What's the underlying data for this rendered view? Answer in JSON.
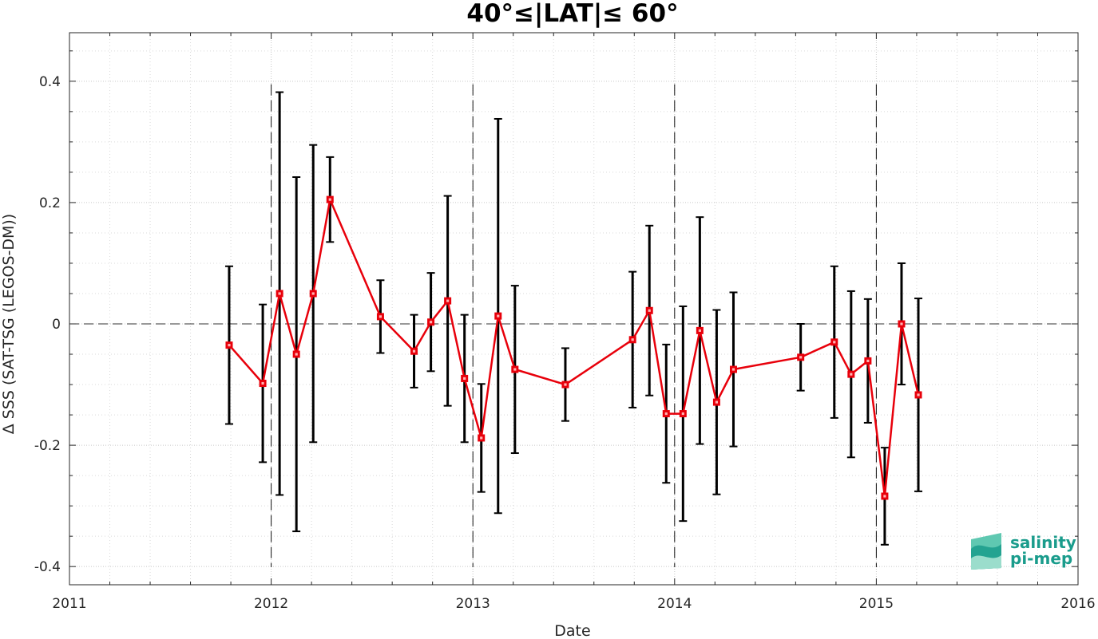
{
  "chart_data": {
    "type": "line",
    "title": "40°≤|LAT|≤ 60°",
    "xlabel": "Date",
    "ylabel": "Δ SSS (SAT-TSG (LEGOS-DM))",
    "xlim": [
      2011,
      2016
    ],
    "ylim": [
      -0.43,
      0.48
    ],
    "x_ticks": [
      "2011",
      "2012",
      "2013",
      "2014",
      "2015",
      "2016"
    ],
    "y_ticks": [
      "-0.4",
      "-0.2",
      "0",
      "0.2",
      "0.4"
    ],
    "grid": true,
    "reference_line_y": 0,
    "year_boundaries": [
      2012,
      2013,
      2014,
      2015
    ],
    "series": [
      {
        "color": "#e8000b",
        "errorbar_color": "#000000",
        "points": [
          {
            "x": "2011-10",
            "y": -0.035,
            "low": -0.165,
            "high": 0.095
          },
          {
            "x": "2011-12",
            "y": -0.098,
            "low": -0.228,
            "high": 0.032
          },
          {
            "x": "2012-01",
            "y": 0.05,
            "low": -0.282,
            "high": 0.382
          },
          {
            "x": "2012-02",
            "y": -0.05,
            "low": -0.342,
            "high": 0.242
          },
          {
            "x": "2012-03",
            "y": 0.05,
            "low": -0.195,
            "high": 0.295
          },
          {
            "x": "2012-04",
            "y": 0.205,
            "low": 0.135,
            "high": 0.275
          },
          {
            "x": "2012-07",
            "y": 0.012,
            "low": -0.048,
            "high": 0.072
          },
          {
            "x": "2012-09",
            "y": -0.045,
            "low": -0.105,
            "high": 0.015
          },
          {
            "x": "2012-10",
            "y": 0.003,
            "low": -0.078,
            "high": 0.084
          },
          {
            "x": "2012-11",
            "y": 0.038,
            "low": -0.135,
            "high": 0.211
          },
          {
            "x": "2012-12",
            "y": -0.09,
            "low": -0.195,
            "high": 0.015
          },
          {
            "x": "2013-01",
            "y": -0.188,
            "low": -0.277,
            "high": -0.099
          },
          {
            "x": "2013-02",
            "y": 0.013,
            "low": -0.312,
            "high": 0.338
          },
          {
            "x": "2013-03",
            "y": -0.075,
            "low": -0.213,
            "high": 0.063
          },
          {
            "x": "2013-06",
            "y": -0.1,
            "low": -0.16,
            "high": -0.04
          },
          {
            "x": "2013-10",
            "y": -0.026,
            "low": -0.138,
            "high": 0.086
          },
          {
            "x": "2013-11",
            "y": 0.022,
            "low": -0.118,
            "high": 0.162
          },
          {
            "x": "2013-12",
            "y": -0.148,
            "low": -0.262,
            "high": -0.034
          },
          {
            "x": "2014-01",
            "y": -0.148,
            "low": -0.325,
            "high": 0.029
          },
          {
            "x": "2014-02",
            "y": -0.011,
            "low": -0.198,
            "high": 0.176
          },
          {
            "x": "2014-03",
            "y": -0.129,
            "low": -0.281,
            "high": 0.023
          },
          {
            "x": "2014-04",
            "y": -0.075,
            "low": -0.202,
            "high": 0.052
          },
          {
            "x": "2014-08",
            "y": -0.055,
            "low": -0.11,
            "high": 0.0
          },
          {
            "x": "2014-10",
            "y": -0.03,
            "low": -0.155,
            "high": 0.095
          },
          {
            "x": "2014-11",
            "y": -0.083,
            "low": -0.22,
            "high": 0.054
          },
          {
            "x": "2014-12",
            "y": -0.061,
            "low": -0.163,
            "high": 0.041
          },
          {
            "x": "2015-01",
            "y": -0.284,
            "low": -0.364,
            "high": -0.204
          },
          {
            "x": "2015-02",
            "y": 0.0,
            "low": -0.1,
            "high": 0.1
          },
          {
            "x": "2015-03",
            "y": -0.117,
            "low": -0.276,
            "high": 0.042
          }
        ]
      }
    ]
  },
  "logo": {
    "line1": "salinity",
    "line2": "pi-mep",
    "color": "#1a9c8c"
  }
}
